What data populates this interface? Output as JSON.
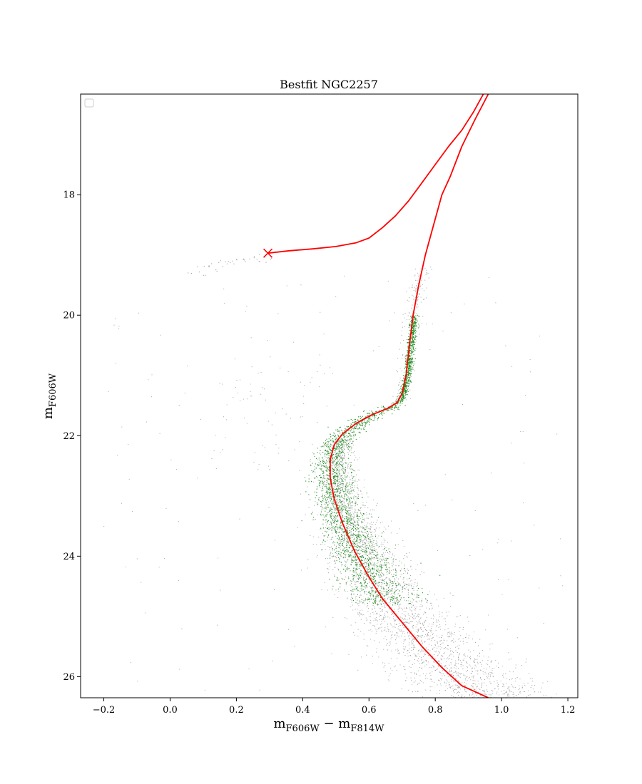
{
  "chart_data": {
    "type": "scatter",
    "title": "Bestfit NGC2257",
    "xlabel": {
      "main": "m",
      "sub1": "F606W",
      "minus": " − m",
      "sub2": "F814W"
    },
    "ylabel": {
      "main": "m",
      "sub": "F606W"
    },
    "xlim": [
      -0.27,
      1.23
    ],
    "ylim": [
      26.35,
      16.33
    ],
    "y_inverted": true,
    "x_ticks": [
      -0.2,
      0.0,
      0.2,
      0.4,
      0.6,
      0.8,
      1.0,
      1.2
    ],
    "x_tick_labels": [
      "−0.2",
      "0.0",
      "0.2",
      "0.4",
      "0.6",
      "0.8",
      "1.0",
      "1.2"
    ],
    "y_ticks": [
      18,
      20,
      22,
      24,
      26
    ],
    "y_tick_labels": [
      "18",
      "20",
      "22",
      "24",
      "26"
    ],
    "grid": false,
    "legend": {
      "placement": "top-left",
      "entries": []
    },
    "colors": {
      "isochrone": "#ff0000",
      "selected": "#1a8a1a",
      "all_stars": "#9a9a9a",
      "axes": "#000000"
    },
    "series": [
      {
        "kind": "line",
        "color": "#ff0000",
        "points": [
          [
            0.96,
            16.33
          ],
          [
            0.92,
            16.75
          ],
          [
            0.88,
            17.2
          ],
          [
            0.845,
            17.7
          ],
          [
            0.82,
            18.0
          ],
          [
            0.795,
            18.5
          ],
          [
            0.77,
            19.0
          ],
          [
            0.75,
            19.5
          ],
          [
            0.733,
            20.0
          ],
          [
            0.722,
            20.5
          ],
          [
            0.712,
            21.0
          ],
          [
            0.7,
            21.3
          ],
          [
            0.685,
            21.45
          ],
          [
            0.655,
            21.55
          ],
          [
            0.61,
            21.65
          ],
          [
            0.56,
            21.8
          ],
          [
            0.52,
            21.97
          ],
          [
            0.495,
            22.15
          ],
          [
            0.483,
            22.4
          ],
          [
            0.483,
            22.7
          ],
          [
            0.495,
            23.05
          ],
          [
            0.52,
            23.45
          ],
          [
            0.555,
            23.9
          ],
          [
            0.595,
            24.3
          ],
          [
            0.64,
            24.7
          ],
          [
            0.7,
            25.1
          ],
          [
            0.76,
            25.5
          ],
          [
            0.82,
            25.85
          ],
          [
            0.88,
            26.15
          ],
          [
            0.96,
            26.35
          ]
        ]
      },
      {
        "kind": "line",
        "color": "#ff0000",
        "points": [
          [
            0.295,
            18.97
          ],
          [
            0.36,
            18.93
          ],
          [
            0.43,
            18.9
          ],
          [
            0.5,
            18.86
          ],
          [
            0.56,
            18.8
          ],
          [
            0.6,
            18.72
          ],
          [
            0.64,
            18.55
          ],
          [
            0.68,
            18.35
          ],
          [
            0.72,
            18.1
          ],
          [
            0.76,
            17.8
          ],
          [
            0.8,
            17.5
          ],
          [
            0.84,
            17.2
          ],
          [
            0.88,
            16.93
          ],
          [
            0.915,
            16.63
          ],
          [
            0.945,
            16.33
          ]
        ]
      },
      {
        "kind": "marker",
        "marker": "x",
        "color": "#ff0000",
        "points": [
          [
            0.295,
            18.97
          ]
        ]
      },
      {
        "kind": "scatter",
        "color": "#9a9a9a",
        "description_of_distribution": "field/cluster stars: dense main sequence 22–26.3 mag following the isochrone with spread, horizontal branch near 19–19.3 at colour 0.08–0.3, sparse field scatter"
      },
      {
        "kind": "scatter",
        "color": "#1a8a1a",
        "description_of_distribution": "selected members: subgiant branch/main-sequence turnoff and upper main sequence from 20.0 to 24.8 mag hugging the isochrone"
      }
    ]
  }
}
